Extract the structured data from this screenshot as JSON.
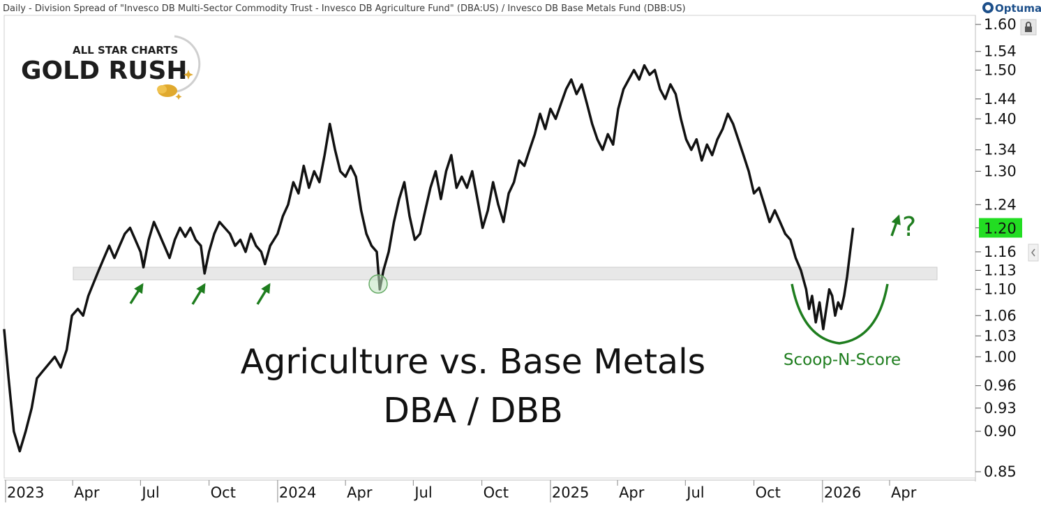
{
  "header": {
    "title": "Daily - Division Spread of \"Invesco DB Multi-Sector Commodity Trust - Invesco DB Agriculture Fund\" (DBA:US) / Invesco DB Base Metals Fund (DBB:US)",
    "brand": "Optuma"
  },
  "logo": {
    "line1": "ALL STAR CHARTS",
    "line2": "GOLD RUSH"
  },
  "annotations": {
    "title_line1": "Agriculture vs. Base Metals",
    "title_line2": "DBA / DBB",
    "pattern_label": "Scoop-N-Score",
    "question": "?"
  },
  "colors": {
    "line": "#111111",
    "support_zone": "#e4e4e4",
    "annotation_green": "#1e7d1e",
    "last_price_bg": "#22dd22",
    "logo_gold": "#e0a92e"
  },
  "chart_data": {
    "type": "line",
    "scale": "log",
    "title": "Agriculture vs. Base Metals",
    "subtitle": "DBA / DBB",
    "ylim": [
      0.85,
      1.61
    ],
    "yticks": [
      1.6,
      1.54,
      1.5,
      1.44,
      1.4,
      1.34,
      1.3,
      1.24,
      1.2,
      1.16,
      1.13,
      1.1,
      1.06,
      1.03,
      1.0,
      0.96,
      0.93,
      0.9,
      0.85
    ],
    "y_tick_labels": [
      "1.60",
      "1.54",
      "1.50",
      "1.44",
      "1.40",
      "1.34",
      "1.30",
      "1.24",
      "1.20",
      "1.16",
      "1.13",
      "1.10",
      "1.06",
      "1.03",
      "1.00",
      "0.96",
      "0.93",
      "0.90",
      "0.85"
    ],
    "last_value": "1.20",
    "x_tick_labels": [
      {
        "label": "2023",
        "date": "2023-01-01",
        "bold": true
      },
      {
        "label": "Apr",
        "date": "2023-04-01",
        "bold": false
      },
      {
        "label": "Jul",
        "date": "2023-07-01",
        "bold": false
      },
      {
        "label": "Oct",
        "date": "2023-10-01",
        "bold": false
      },
      {
        "label": "2024",
        "date": "2024-01-01",
        "bold": true
      },
      {
        "label": "Apr",
        "date": "2024-04-01",
        "bold": false
      },
      {
        "label": "Jul",
        "date": "2024-07-01",
        "bold": false
      },
      {
        "label": "Oct",
        "date": "2024-10-01",
        "bold": false
      },
      {
        "label": "2025",
        "date": "2025-01-01",
        "bold": true
      },
      {
        "label": "Apr",
        "date": "2025-04-01",
        "bold": false
      },
      {
        "label": "Jul",
        "date": "2025-07-01",
        "bold": false
      },
      {
        "label": "Oct",
        "date": "2025-10-01",
        "bold": false
      },
      {
        "label": "2026",
        "date": "2026-01-01",
        "bold": true
      },
      {
        "label": "Apr",
        "date": "2026-04-01",
        "bold": false
      }
    ],
    "support_zone": [
      1.115,
      1.135
    ],
    "series": [
      {
        "points": [
          [
            "2022-12-30",
            1.04
          ],
          [
            "2023-01-05",
            0.97
          ],
          [
            "2023-01-12",
            0.9
          ],
          [
            "2023-01-20",
            0.875
          ],
          [
            "2023-01-28",
            0.9
          ],
          [
            "2023-02-05",
            0.93
          ],
          [
            "2023-02-12",
            0.97
          ],
          [
            "2023-02-20",
            0.98
          ],
          [
            "2023-02-28",
            0.99
          ],
          [
            "2023-03-08",
            1.0
          ],
          [
            "2023-03-16",
            0.985
          ],
          [
            "2023-03-24",
            1.01
          ],
          [
            "2023-03-31",
            1.06
          ],
          [
            "2023-04-08",
            1.07
          ],
          [
            "2023-04-15",
            1.06
          ],
          [
            "2023-04-22",
            1.09
          ],
          [
            "2023-04-29",
            1.11
          ],
          [
            "2023-05-06",
            1.13
          ],
          [
            "2023-05-13",
            1.15
          ],
          [
            "2023-05-20",
            1.17
          ],
          [
            "2023-05-27",
            1.15
          ],
          [
            "2023-06-03",
            1.17
          ],
          [
            "2023-06-10",
            1.19
          ],
          [
            "2023-06-17",
            1.2
          ],
          [
            "2023-06-24",
            1.18
          ],
          [
            "2023-07-01",
            1.16
          ],
          [
            "2023-07-05",
            1.135
          ],
          [
            "2023-07-12",
            1.18
          ],
          [
            "2023-07-19",
            1.21
          ],
          [
            "2023-07-26",
            1.19
          ],
          [
            "2023-08-02",
            1.17
          ],
          [
            "2023-08-09",
            1.15
          ],
          [
            "2023-08-16",
            1.18
          ],
          [
            "2023-08-23",
            1.2
          ],
          [
            "2023-08-30",
            1.185
          ],
          [
            "2023-09-06",
            1.2
          ],
          [
            "2023-09-13",
            1.18
          ],
          [
            "2023-09-20",
            1.17
          ],
          [
            "2023-09-25",
            1.125
          ],
          [
            "2023-10-01",
            1.16
          ],
          [
            "2023-10-08",
            1.19
          ],
          [
            "2023-10-15",
            1.21
          ],
          [
            "2023-10-22",
            1.2
          ],
          [
            "2023-10-29",
            1.19
          ],
          [
            "2023-11-05",
            1.17
          ],
          [
            "2023-11-12",
            1.18
          ],
          [
            "2023-11-19",
            1.16
          ],
          [
            "2023-11-26",
            1.19
          ],
          [
            "2023-12-03",
            1.17
          ],
          [
            "2023-12-10",
            1.16
          ],
          [
            "2023-12-15",
            1.14
          ],
          [
            "2023-12-22",
            1.17
          ],
          [
            "2024-01-01",
            1.19
          ],
          [
            "2024-01-08",
            1.22
          ],
          [
            "2024-01-15",
            1.24
          ],
          [
            "2024-01-22",
            1.28
          ],
          [
            "2024-01-29",
            1.26
          ],
          [
            "2024-02-05",
            1.31
          ],
          [
            "2024-02-12",
            1.27
          ],
          [
            "2024-02-19",
            1.3
          ],
          [
            "2024-02-26",
            1.28
          ],
          [
            "2024-03-04",
            1.33
          ],
          [
            "2024-03-11",
            1.39
          ],
          [
            "2024-03-18",
            1.34
          ],
          [
            "2024-03-25",
            1.3
          ],
          [
            "2024-04-01",
            1.29
          ],
          [
            "2024-04-08",
            1.31
          ],
          [
            "2024-04-15",
            1.29
          ],
          [
            "2024-04-22",
            1.23
          ],
          [
            "2024-04-29",
            1.19
          ],
          [
            "2024-05-06",
            1.17
          ],
          [
            "2024-05-13",
            1.16
          ],
          [
            "2024-05-17",
            1.1
          ],
          [
            "2024-05-22",
            1.13
          ],
          [
            "2024-05-29",
            1.16
          ],
          [
            "2024-06-05",
            1.21
          ],
          [
            "2024-06-12",
            1.25
          ],
          [
            "2024-06-19",
            1.28
          ],
          [
            "2024-06-26",
            1.22
          ],
          [
            "2024-07-03",
            1.18
          ],
          [
            "2024-07-10",
            1.19
          ],
          [
            "2024-07-17",
            1.23
          ],
          [
            "2024-07-24",
            1.27
          ],
          [
            "2024-07-31",
            1.3
          ],
          [
            "2024-08-07",
            1.25
          ],
          [
            "2024-08-14",
            1.3
          ],
          [
            "2024-08-21",
            1.33
          ],
          [
            "2024-08-28",
            1.27
          ],
          [
            "2024-09-04",
            1.29
          ],
          [
            "2024-09-11",
            1.27
          ],
          [
            "2024-09-18",
            1.3
          ],
          [
            "2024-09-25",
            1.25
          ],
          [
            "2024-10-02",
            1.2
          ],
          [
            "2024-10-09",
            1.23
          ],
          [
            "2024-10-16",
            1.28
          ],
          [
            "2024-10-23",
            1.24
          ],
          [
            "2024-10-30",
            1.21
          ],
          [
            "2024-11-06",
            1.26
          ],
          [
            "2024-11-13",
            1.28
          ],
          [
            "2024-11-20",
            1.32
          ],
          [
            "2024-11-27",
            1.31
          ],
          [
            "2024-12-04",
            1.34
          ],
          [
            "2024-12-11",
            1.37
          ],
          [
            "2024-12-18",
            1.41
          ],
          [
            "2024-12-25",
            1.38
          ],
          [
            "2025-01-01",
            1.42
          ],
          [
            "2025-01-08",
            1.4
          ],
          [
            "2025-01-15",
            1.43
          ],
          [
            "2025-01-22",
            1.46
          ],
          [
            "2025-01-29",
            1.48
          ],
          [
            "2025-02-05",
            1.45
          ],
          [
            "2025-02-12",
            1.47
          ],
          [
            "2025-02-19",
            1.43
          ],
          [
            "2025-02-26",
            1.39
          ],
          [
            "2025-03-05",
            1.36
          ],
          [
            "2025-03-12",
            1.34
          ],
          [
            "2025-03-19",
            1.37
          ],
          [
            "2025-03-26",
            1.35
          ],
          [
            "2025-04-02",
            1.42
          ],
          [
            "2025-04-09",
            1.46
          ],
          [
            "2025-04-16",
            1.48
          ],
          [
            "2025-04-23",
            1.5
          ],
          [
            "2025-04-30",
            1.48
          ],
          [
            "2025-05-07",
            1.51
          ],
          [
            "2025-05-14",
            1.49
          ],
          [
            "2025-05-21",
            1.5
          ],
          [
            "2025-05-28",
            1.46
          ],
          [
            "2025-06-04",
            1.44
          ],
          [
            "2025-06-11",
            1.47
          ],
          [
            "2025-06-18",
            1.45
          ],
          [
            "2025-06-25",
            1.4
          ],
          [
            "2025-07-02",
            1.36
          ],
          [
            "2025-07-09",
            1.34
          ],
          [
            "2025-07-16",
            1.36
          ],
          [
            "2025-07-23",
            1.32
          ],
          [
            "2025-07-30",
            1.35
          ],
          [
            "2025-08-06",
            1.33
          ],
          [
            "2025-08-13",
            1.36
          ],
          [
            "2025-08-20",
            1.38
          ],
          [
            "2025-08-27",
            1.41
          ],
          [
            "2025-09-03",
            1.39
          ],
          [
            "2025-09-10",
            1.36
          ],
          [
            "2025-09-17",
            1.33
          ],
          [
            "2025-09-24",
            1.3
          ],
          [
            "2025-10-01",
            1.26
          ],
          [
            "2025-10-08",
            1.27
          ],
          [
            "2025-10-15",
            1.24
          ],
          [
            "2025-10-22",
            1.21
          ],
          [
            "2025-10-29",
            1.23
          ],
          [
            "2025-11-05",
            1.21
          ],
          [
            "2025-11-12",
            1.19
          ],
          [
            "2025-11-19",
            1.18
          ],
          [
            "2025-11-26",
            1.15
          ],
          [
            "2025-12-03",
            1.13
          ],
          [
            "2025-12-10",
            1.1
          ],
          [
            "2025-12-14",
            1.07
          ],
          [
            "2025-12-18",
            1.09
          ],
          [
            "2025-12-23",
            1.05
          ],
          [
            "2025-12-28",
            1.08
          ],
          [
            "2026-01-02",
            1.04
          ],
          [
            "2026-01-06",
            1.07
          ],
          [
            "2026-01-10",
            1.1
          ],
          [
            "2026-01-14",
            1.09
          ],
          [
            "2026-01-18",
            1.06
          ],
          [
            "2026-01-22",
            1.08
          ],
          [
            "2026-01-26",
            1.07
          ],
          [
            "2026-01-30",
            1.09
          ],
          [
            "2026-02-03",
            1.12
          ],
          [
            "2026-02-07",
            1.16
          ],
          [
            "2026-02-11",
            1.2
          ]
        ]
      }
    ]
  }
}
